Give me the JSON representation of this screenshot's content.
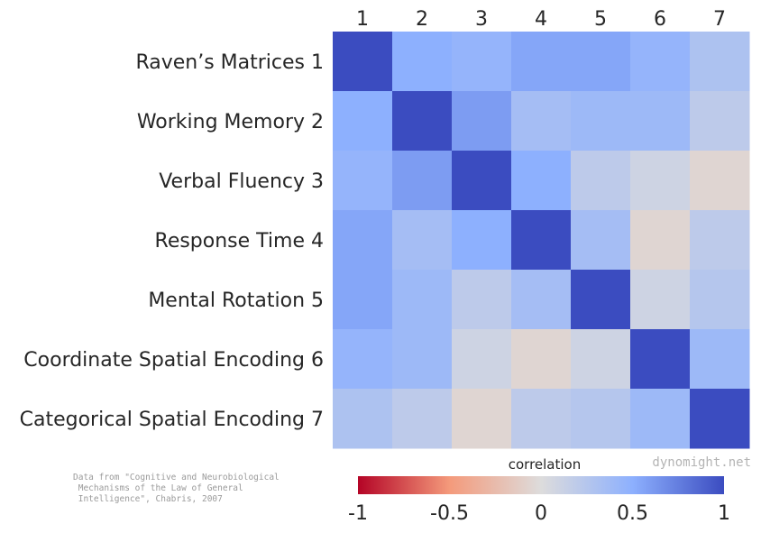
{
  "chart_data": {
    "type": "heatmap",
    "row_labels": [
      "Raven’s Matrices  1",
      "Working Memory  2",
      "Verbal Fluency  3",
      "Response Time  4",
      "Mental Rotation  5",
      "Coordinate Spatial Encoding  6",
      "Categorical Spatial Encoding  7"
    ],
    "column_labels": [
      "1",
      "2",
      "3",
      "4",
      "5",
      "6",
      "7"
    ],
    "values": [
      [
        1.0,
        0.5,
        0.45,
        0.55,
        0.55,
        0.45,
        0.3
      ],
      [
        0.5,
        1.0,
        0.6,
        0.35,
        0.4,
        0.4,
        0.2
      ],
      [
        0.45,
        0.6,
        1.0,
        0.5,
        0.2,
        0.1,
        -0.05
      ],
      [
        0.55,
        0.35,
        0.5,
        1.0,
        0.35,
        -0.05,
        0.2
      ],
      [
        0.55,
        0.4,
        0.2,
        0.35,
        1.0,
        0.1,
        0.25
      ],
      [
        0.45,
        0.4,
        0.1,
        -0.05,
        0.1,
        1.0,
        0.4
      ],
      [
        0.3,
        0.2,
        -0.05,
        0.2,
        0.25,
        0.4,
        1.0
      ]
    ],
    "colormap": "coolwarm reversed (red = -1, blue = +1)",
    "vmin": -1,
    "vmax": 1,
    "colorbar": {
      "title": "correlation",
      "ticks": [
        "-1",
        "-0.5",
        "0",
        "0.5",
        "1"
      ],
      "placement": "bottom"
    }
  },
  "source_note": [
    "Data from \"Cognitive and Neurobiological",
    " Mechanisms of the Law of General",
    " Intelligence\", Chabris, 2007"
  ],
  "watermark": "dynomight.net"
}
